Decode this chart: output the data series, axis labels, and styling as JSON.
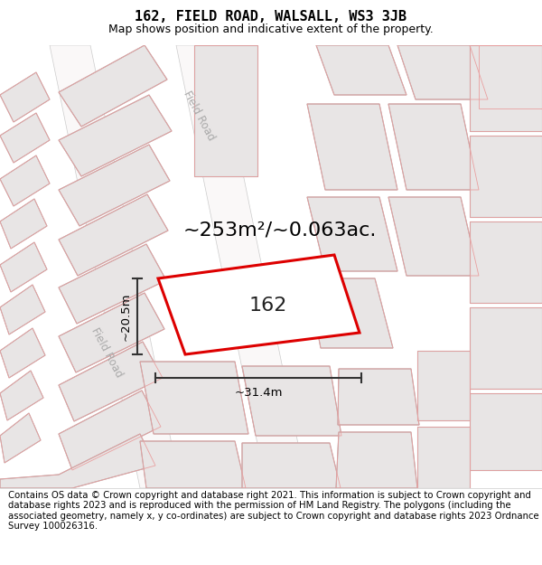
{
  "title": "162, FIELD ROAD, WALSALL, WS3 3JB",
  "subtitle": "Map shows position and indicative extent of the property.",
  "footer": "Contains OS data © Crown copyright and database right 2021. This information is subject to Crown copyright and database rights 2023 and is reproduced with the permission of HM Land Registry. The polygons (including the associated geometry, namely x, y co-ordinates) are subject to Crown copyright and database rights 2023 Ordnance Survey 100026316.",
  "area_text": "~253m²/~0.063ac.",
  "label_162": "162",
  "width_label": "~31.4m",
  "height_label": "~20.5m",
  "road_label_top": "Field Road",
  "road_label_left": "Field Road",
  "map_bg": "#f0eeee",
  "building_fill": "#e8e5e5",
  "building_stroke": "#b0a8a8",
  "pink_stroke": "#e8a0a0",
  "road_fill": "#faf8f8",
  "highlight_fill": "#ffffff",
  "highlight_stroke": "#dd0000",
  "title_fontsize": 11,
  "subtitle_fontsize": 9,
  "footer_fontsize": 7.3,
  "area_fontsize": 16,
  "label_fontsize": 16,
  "dim_fontsize": 9.5,
  "road_label_fontsize": 8.5
}
